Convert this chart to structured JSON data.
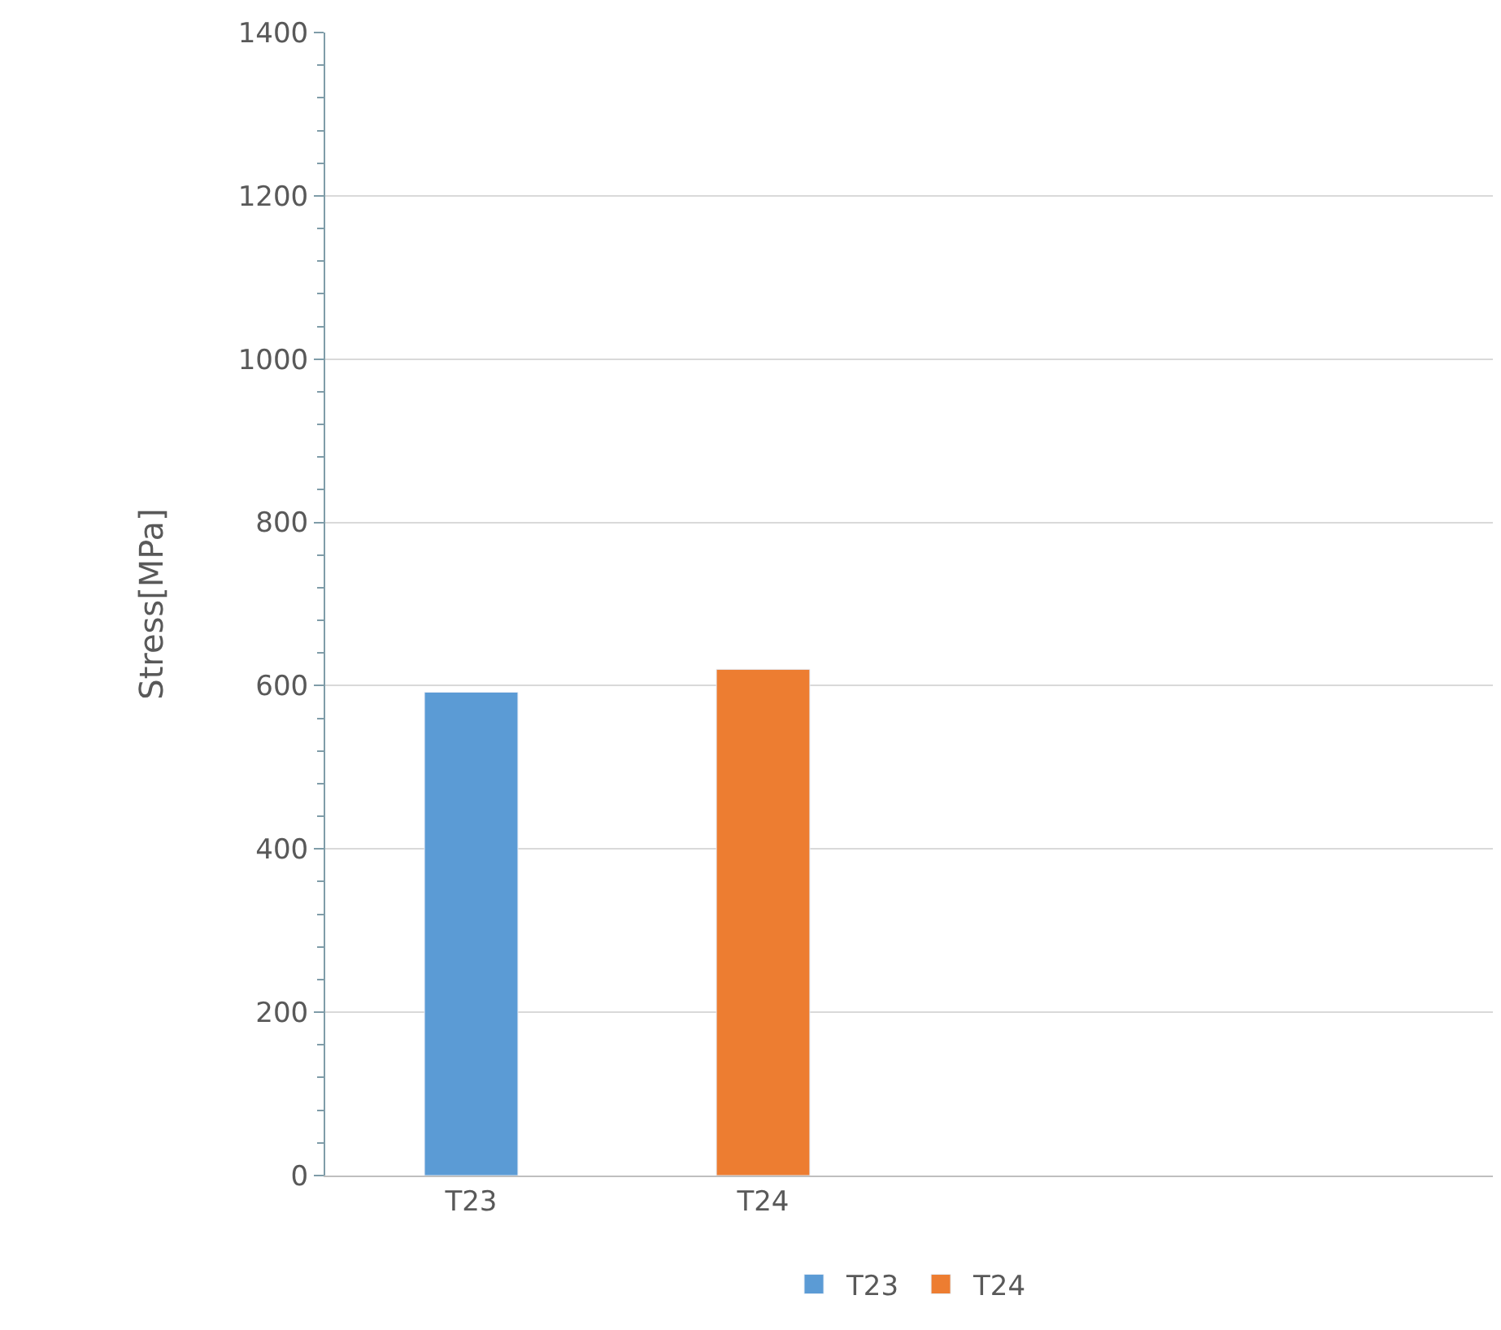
{
  "chart_data": {
    "type": "bar",
    "ylabel": "Stress[MPa]",
    "categories": [
      "T23",
      "T24",
      null,
      null
    ],
    "series": [
      {
        "name": "T23",
        "color": "#5b9bd5",
        "values": [
          592,
          null,
          null,
          null
        ]
      },
      {
        "name": "T24",
        "color": "#ed7d31",
        "values": [
          null,
          620,
          null,
          null
        ]
      }
    ],
    "ylim": [
      0,
      1400
    ],
    "yticks": [
      0,
      200,
      400,
      600,
      800,
      1000,
      1200,
      1400
    ],
    "grid": "y",
    "legend": "bottom"
  }
}
